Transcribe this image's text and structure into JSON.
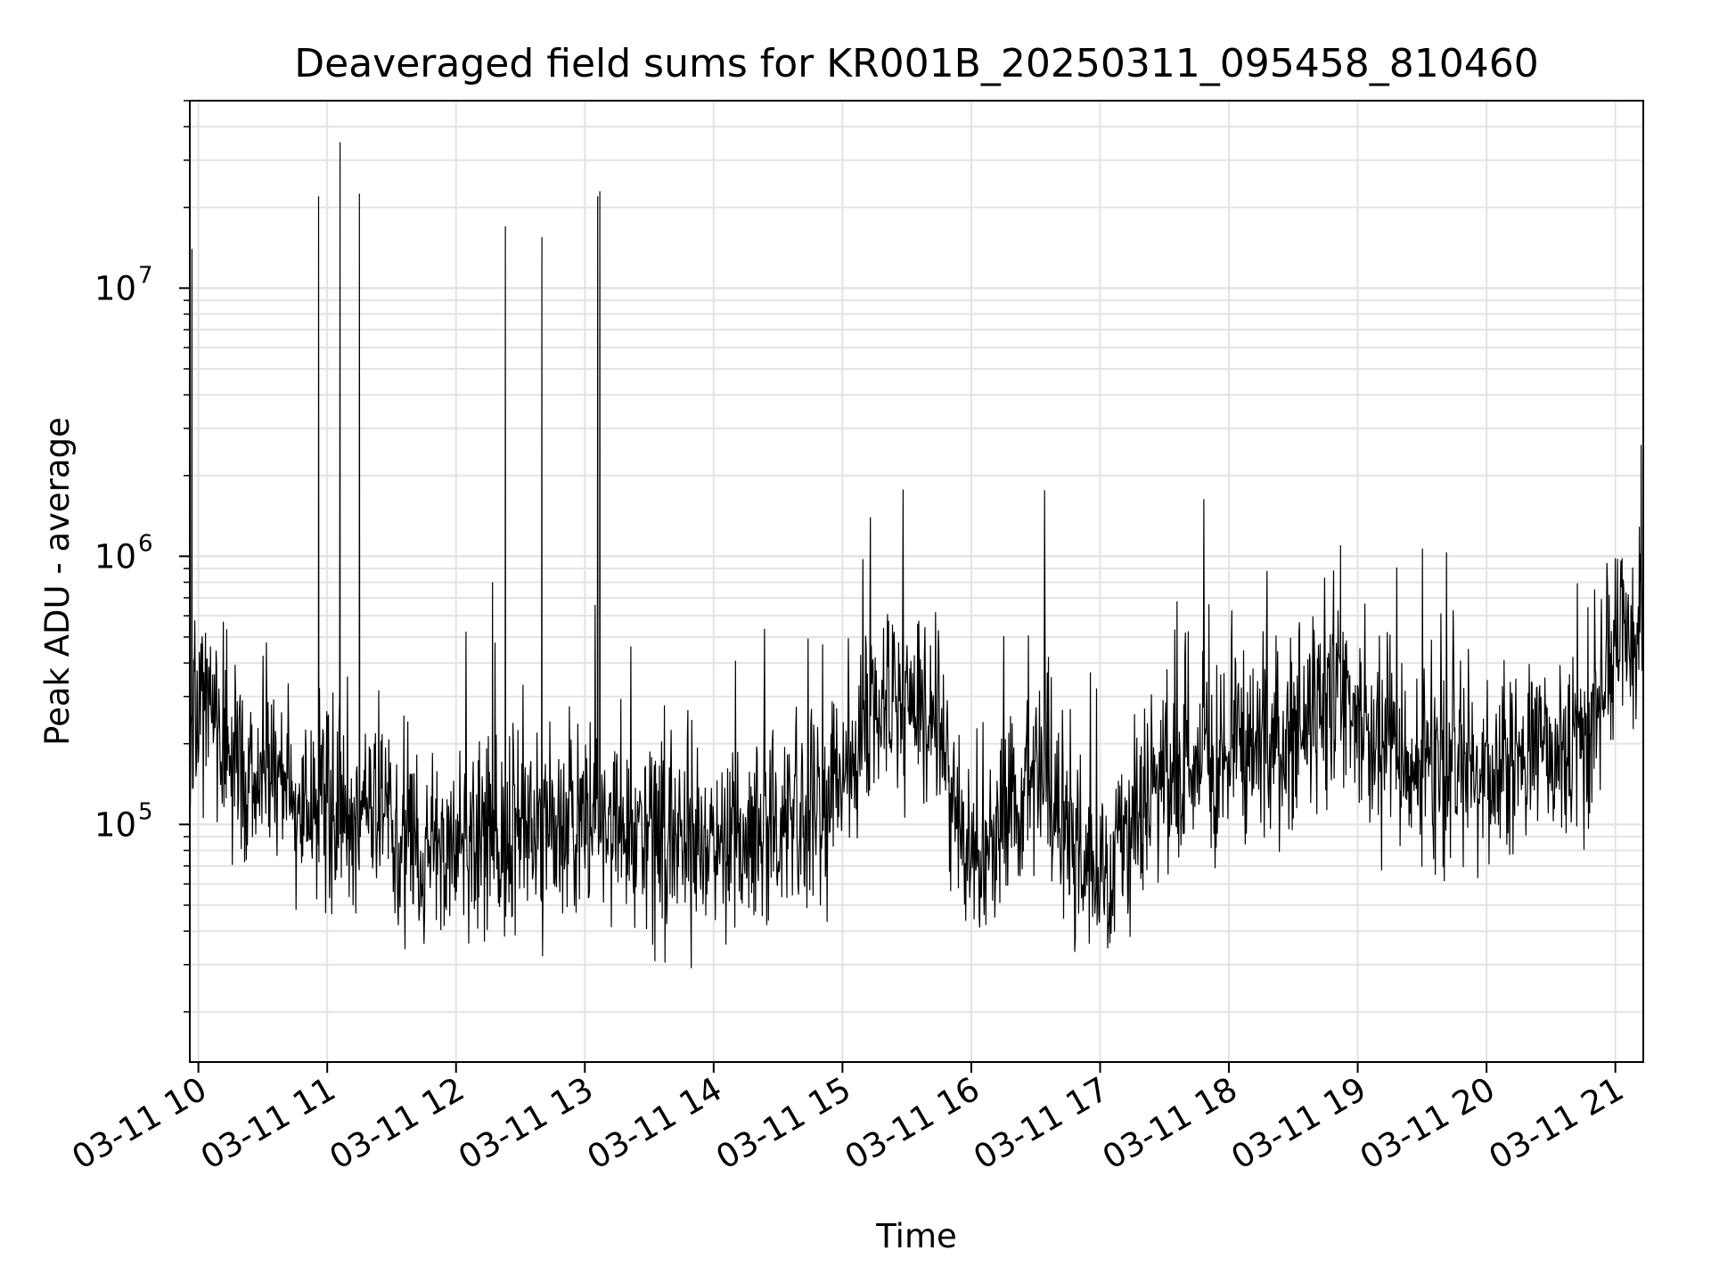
{
  "chart_data": {
    "type": "line",
    "title": "Deaveraged field sums for KR001B_20250311_095458_810460",
    "xlabel": "Time",
    "ylabel": "Peak ADU - average",
    "x_range": [
      "2025-03-11 09:56",
      "2025-03-11 21:13"
    ],
    "x_ticks": [
      "03-11 10",
      "03-11 11",
      "03-11 12",
      "03-11 13",
      "03-11 14",
      "03-11 15",
      "03-11 16",
      "03-11 17",
      "03-11 18",
      "03-11 19",
      "03-11 20",
      "03-11 21"
    ],
    "y_scale": "log",
    "ylim": [
      13000,
      50000000
    ],
    "y_ticks": [
      {
        "base": "10",
        "exp": "5",
        "value": 100000
      },
      {
        "base": "10",
        "exp": "6",
        "value": 1000000
      },
      {
        "base": "10",
        "exp": "7",
        "value": 10000000
      }
    ],
    "grid": true,
    "line_color": "#000000",
    "series": [
      {
        "x": [
          "2025-03-11 09:56",
          "2025-03-11 10:00",
          "2025-03-11 10:10",
          "2025-03-11 10:20",
          "2025-03-11 10:30",
          "2025-03-11 10:45",
          "2025-03-11 11:00",
          "2025-03-11 11:15",
          "2025-03-11 11:30",
          "2025-03-11 11:45",
          "2025-03-11 12:00",
          "2025-03-11 12:15",
          "2025-03-11 12:30",
          "2025-03-11 12:45",
          "2025-03-11 13:00",
          "2025-03-11 13:15",
          "2025-03-11 13:30",
          "2025-03-11 13:45",
          "2025-03-11 14:00",
          "2025-03-11 14:15",
          "2025-03-11 14:30",
          "2025-03-11 14:45",
          "2025-03-11 15:00",
          "2025-03-11 15:15",
          "2025-03-11 15:30",
          "2025-03-11 15:45",
          "2025-03-11 16:00",
          "2025-03-11 16:15",
          "2025-03-11 16:30",
          "2025-03-11 16:45",
          "2025-03-11 17:00",
          "2025-03-11 17:15",
          "2025-03-11 17:30",
          "2025-03-11 17:45",
          "2025-03-11 18:00",
          "2025-03-11 18:15",
          "2025-03-11 18:30",
          "2025-03-11 18:45",
          "2025-03-11 19:00",
          "2025-03-11 19:15",
          "2025-03-11 19:30",
          "2025-03-11 19:45",
          "2025-03-11 20:00",
          "2025-03-11 20:15",
          "2025-03-11 20:30",
          "2025-03-11 20:45",
          "2025-03-11 21:00",
          "2025-03-11 21:13"
        ],
        "y": [
          300000,
          300000,
          220000,
          170000,
          150000,
          140000,
          120000,
          110000,
          90000,
          80000,
          80000,
          90000,
          90000,
          95000,
          100000,
          100000,
          90000,
          85000,
          90000,
          100000,
          100000,
          110000,
          130000,
          250000,
          280000,
          200000,
          70000,
          80000,
          200000,
          90000,
          60000,
          110000,
          150000,
          180000,
          180000,
          200000,
          220000,
          300000,
          250000,
          180000,
          180000,
          180000,
          160000,
          170000,
          180000,
          200000,
          450000,
          600000
        ],
        "spikes": [
          {
            "x": "2025-03-11 09:57",
            "y": 14000000
          },
          {
            "x": "2025-03-11 10:56",
            "y": 22000000
          },
          {
            "x": "2025-03-11 11:06",
            "y": 35000000
          },
          {
            "x": "2025-03-11 11:15",
            "y": 22500000
          },
          {
            "x": "2025-03-11 12:17",
            "y": 800000
          },
          {
            "x": "2025-03-11 12:23",
            "y": 17000000
          },
          {
            "x": "2025-03-11 12:40",
            "y": 15500000
          },
          {
            "x": "2025-03-11 13:06",
            "y": 22000000
          },
          {
            "x": "2025-03-11 13:07",
            "y": 23000000
          },
          {
            "x": "2025-03-11 15:13",
            "y": 1400000
          },
          {
            "x": "2025-03-11 18:52",
            "y": 1100000
          },
          {
            "x": "2025-03-11 21:12",
            "y": 2600000
          }
        ]
      }
    ]
  }
}
